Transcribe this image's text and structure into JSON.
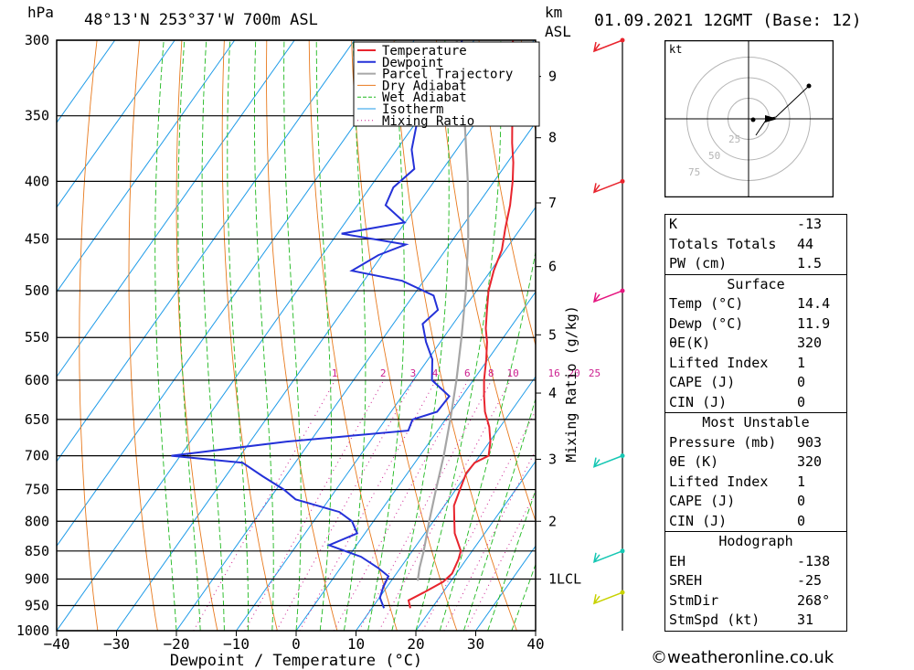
{
  "header": {
    "unit_pressure": "hPa",
    "location": "48°13'N 253°37'W 700m ASL",
    "unit_km": "km",
    "unit_asl": "ASL",
    "datetime": "01.09.2021 12GMT (Base: 12)"
  },
  "chart_data": {
    "type": "line",
    "title": "48°13'N 253°37'W 700m ASL",
    "xlabel": "Dewpoint / Temperature (°C)",
    "ylabel": "hPa",
    "right_axis_label": "Mixing Ratio (g/kg)",
    "xlim": [
      -40,
      40
    ],
    "ylim": [
      1000,
      300
    ],
    "x_ticks": [
      "-40",
      "-30",
      "-20",
      "-10",
      "0",
      "10",
      "20",
      "30",
      "40"
    ],
    "pressure_ticks": [
      "300",
      "350",
      "400",
      "450",
      "500",
      "550",
      "600",
      "650",
      "700",
      "750",
      "800",
      "850",
      "900",
      "950",
      "1000"
    ],
    "height_ticks": [
      {
        "label": "9",
        "p": 323
      },
      {
        "label": "8",
        "p": 366
      },
      {
        "label": "7",
        "p": 418
      },
      {
        "label": "6",
        "p": 476
      },
      {
        "label": "5",
        "p": 547
      },
      {
        "label": "4",
        "p": 616
      },
      {
        "label": "3",
        "p": 705
      },
      {
        "label": "2",
        "p": 800
      },
      {
        "label": "1LCL",
        "p": 900
      }
    ],
    "mixing_ratio_labels": [
      "1",
      "2",
      "3",
      "4",
      "6",
      "8",
      "10",
      "16",
      "20",
      "25"
    ],
    "legend": [
      "Temperature",
      "Dewpoint",
      "Parcel Trajectory",
      "Dry Adiabat",
      "Wet Adiabat",
      "Isotherm",
      "Mixing Ratio"
    ],
    "series": [
      {
        "name": "Temperature",
        "color": "#e8242d",
        "points": [
          [
            955,
            16.4
          ],
          [
            940,
            15.2
          ],
          [
            925,
            16.8
          ],
          [
            905,
            18.8
          ],
          [
            890,
            19.3
          ],
          [
            865,
            18.7
          ],
          [
            850,
            18.1
          ],
          [
            820,
            15.0
          ],
          [
            800,
            13.5
          ],
          [
            775,
            11.6
          ],
          [
            750,
            10.7
          ],
          [
            725,
            9.8
          ],
          [
            710,
            10.0
          ],
          [
            700,
            11.5
          ],
          [
            680,
            10.1
          ],
          [
            660,
            8.2
          ],
          [
            640,
            5.7
          ],
          [
            620,
            3.7
          ],
          [
            600,
            1.8
          ],
          [
            575,
            -0.3
          ],
          [
            555,
            -2.2
          ],
          [
            540,
            -4.0
          ],
          [
            520,
            -6.0
          ],
          [
            500,
            -8.0
          ],
          [
            480,
            -9.5
          ],
          [
            460,
            -10.6
          ],
          [
            440,
            -12.6
          ],
          [
            420,
            -14.5
          ],
          [
            400,
            -16.9
          ],
          [
            385,
            -19.0
          ],
          [
            370,
            -21.5
          ],
          [
            350,
            -24.7
          ],
          [
            330,
            -28.5
          ],
          [
            310,
            -32.0
          ],
          [
            300,
            -33.5
          ]
        ]
      },
      {
        "name": "Dewpoint",
        "color": "#2431d8",
        "points": [
          [
            955,
            12.0
          ],
          [
            935,
            10.1
          ],
          [
            915,
            9.4
          ],
          [
            895,
            9.0
          ],
          [
            880,
            6.3
          ],
          [
            860,
            2.1
          ],
          [
            840,
            -4.6
          ],
          [
            820,
            -1.3
          ],
          [
            800,
            -3.6
          ],
          [
            785,
            -6.8
          ],
          [
            765,
            -15.6
          ],
          [
            750,
            -18.7
          ],
          [
            730,
            -23.8
          ],
          [
            710,
            -28.8
          ],
          [
            700,
            -41.5
          ],
          [
            680,
            -23.9
          ],
          [
            665,
            -4.9
          ],
          [
            650,
            -5.5
          ],
          [
            640,
            -2.3
          ],
          [
            620,
            -2.1
          ],
          [
            600,
            -6.9
          ],
          [
            575,
            -9.3
          ],
          [
            555,
            -12.4
          ],
          [
            535,
            -15.1
          ],
          [
            520,
            -14.2
          ],
          [
            505,
            -16.6
          ],
          [
            490,
            -23.6
          ],
          [
            480,
            -33.2
          ],
          [
            465,
            -30.6
          ],
          [
            455,
            -27.3
          ],
          [
            445,
            -39.3
          ],
          [
            435,
            -30.1
          ],
          [
            420,
            -35.3
          ],
          [
            405,
            -36.1
          ],
          [
            390,
            -34.8
          ],
          [
            375,
            -37.5
          ],
          [
            355,
            -39.8
          ],
          [
            325,
            -39.8
          ],
          [
            300,
            -42.0
          ]
        ]
      },
      {
        "name": "Parcel Trajectory",
        "color": "#a6a6a6",
        "points": [
          [
            903,
            14.4
          ],
          [
            880,
            13.2
          ],
          [
            850,
            11.9
          ],
          [
            800,
            9.3
          ],
          [
            750,
            6.7
          ],
          [
            700,
            4.0
          ],
          [
            650,
            0.8
          ],
          [
            600,
            -2.8
          ],
          [
            550,
            -7.0
          ],
          [
            500,
            -11.8
          ],
          [
            450,
            -17.5
          ],
          [
            400,
            -24.4
          ],
          [
            350,
            -32.7
          ],
          [
            300,
            -42.9
          ]
        ]
      }
    ]
  },
  "barbs": [
    {
      "p": 300,
      "color": "#e8242d"
    },
    {
      "p": 400,
      "color": "#e8242d"
    },
    {
      "p": 500,
      "color": "#e5157f"
    },
    {
      "p": 700,
      "color": "#15c7b3"
    },
    {
      "p": 850,
      "color": "#15c7b3"
    },
    {
      "p": 925,
      "color": "#c8d200"
    }
  ],
  "hodograph": {
    "unit": "kt",
    "ring_labels": [
      "25",
      "50",
      "75"
    ]
  },
  "stats": {
    "indices": [
      {
        "k": "K",
        "v": "-13"
      },
      {
        "k": "Totals Totals",
        "v": "44"
      },
      {
        "k": "PW (cm)",
        "v": "1.5"
      }
    ],
    "surface": {
      "title": "Surface",
      "rows": [
        {
          "k": "Temp (°C)",
          "v": "14.4"
        },
        {
          "k": "Dewp (°C)",
          "v": "11.9"
        },
        {
          "k": "θE(K)",
          "v": "320"
        },
        {
          "k": "Lifted Index",
          "v": "1"
        },
        {
          "k": "CAPE (J)",
          "v": "0"
        },
        {
          "k": "CIN (J)",
          "v": "0"
        }
      ]
    },
    "most_unstable": {
      "title": "Most Unstable",
      "rows": [
        {
          "k": "Pressure (mb)",
          "v": "903"
        },
        {
          "k": "θE (K)",
          "v": "320"
        },
        {
          "k": "Lifted Index",
          "v": "1"
        },
        {
          "k": "CAPE (J)",
          "v": "0"
        },
        {
          "k": "CIN (J)",
          "v": "0"
        }
      ]
    },
    "hodograph_table": {
      "title": "Hodograph",
      "rows": [
        {
          "k": "EH",
          "v": "-138"
        },
        {
          "k": "SREH",
          "v": "-25"
        },
        {
          "k": "StmDir",
          "v": "268°"
        },
        {
          "k": "StmSpd (kt)",
          "v": "31"
        }
      ]
    }
  },
  "footer": {
    "copyright": "©weatheronline.co.uk"
  },
  "colors": {
    "temperature": "#e8242d",
    "dewpoint": "#2431d8",
    "parcel": "#a6a6a6",
    "dry_adiabat": "#e87a1e",
    "wet_adiabat": "#1eb81e",
    "isotherm": "#1e9be8",
    "mixing_ratio": "#cc1f8f"
  }
}
